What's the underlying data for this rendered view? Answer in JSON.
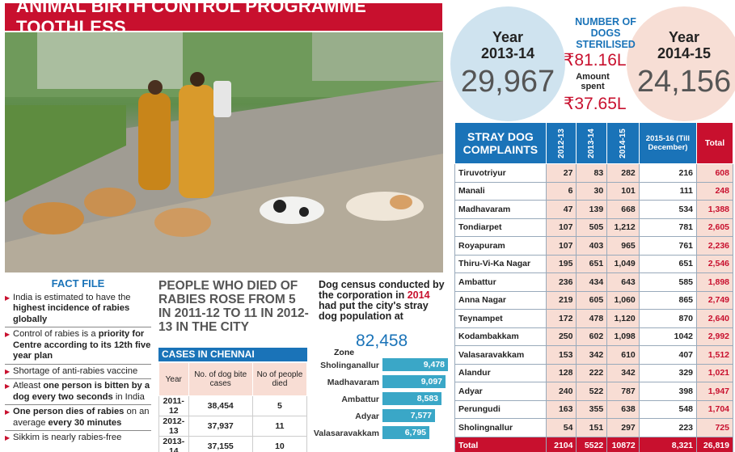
{
  "banner": {
    "title": "ANIMAL BIRTH CONTROL PROGRAMME TOOTHLESS"
  },
  "sterilised": {
    "title": "NUMBER OF DOGS STERILISED",
    "year1_label": "Year",
    "year1": "2013-14",
    "year1_count": "29,967",
    "year2_label": "Year",
    "year2": "2014-15",
    "year2_count": "24,156",
    "amount1": "₹81.16L",
    "amount_label": "Amount spent",
    "amount2": "₹37.65L"
  },
  "complaints": {
    "header": "STRAY DOG COMPLAINTS",
    "columns": [
      "2012-13",
      "2013-14",
      "2014-15",
      "2015-16 (Till December)",
      "Total"
    ],
    "rows": [
      [
        "Tiruvotriyur",
        "27",
        "83",
        "282",
        "216",
        "608"
      ],
      [
        "Manali",
        "6",
        "30",
        "101",
        "111",
        "248"
      ],
      [
        "Madhavaram",
        "47",
        "139",
        "668",
        "534",
        "1,388"
      ],
      [
        "Tondiarpet",
        "107",
        "505",
        "1,212",
        "781",
        "2,605"
      ],
      [
        "Royapuram",
        "107",
        "403",
        "965",
        "761",
        "2,236"
      ],
      [
        "Thiru-Vi-Ka Nagar",
        "195",
        "651",
        "1,049",
        "651",
        "2,546"
      ],
      [
        "Ambattur",
        "236",
        "434",
        "643",
        "585",
        "1,898"
      ],
      [
        "Anna Nagar",
        "219",
        "605",
        "1,060",
        "865",
        "2,749"
      ],
      [
        "Teynampet",
        "172",
        "478",
        "1,120",
        "870",
        "2,640"
      ],
      [
        "Kodambakkam",
        "250",
        "602",
        "1,098",
        "1042",
        "2,992"
      ],
      [
        "Valasaravakkam",
        "153",
        "342",
        "610",
        "407",
        "1,512"
      ],
      [
        "Alandur",
        "128",
        "222",
        "342",
        "329",
        "1,021"
      ],
      [
        "Adyar",
        "240",
        "522",
        "787",
        "398",
        "1,947"
      ],
      [
        "Perungudi",
        "163",
        "355",
        "638",
        "548",
        "1,704"
      ],
      [
        "Sholingnallur",
        "54",
        "151",
        "297",
        "223",
        "725"
      ]
    ],
    "total": [
      "Total",
      "2104",
      "5522",
      "10872",
      "8,321",
      "26,819"
    ]
  },
  "factfile": {
    "title": "FACT FILE",
    "facts": [
      {
        "pre": "India is estimated to have the ",
        "bold": "highest incidence of rabies globally",
        "post": ""
      },
      {
        "pre": "Control of rabies is a ",
        "bold": "priority for Centre according to its 12th five year plan",
        "post": ""
      },
      {
        "pre": "Shortage of anti-rabies vaccine",
        "bold": "",
        "post": ""
      },
      {
        "pre": "Atleast ",
        "bold": "one person is bitten by a dog every two seconds",
        "post": " in India"
      },
      {
        "pre": "",
        "bold": "One person dies of rabies",
        "post": " on an average ",
        "bold2": "every 30 minutes"
      },
      {
        "pre": "Sikkim is nearly rabies-free",
        "bold": "",
        "post": ""
      }
    ]
  },
  "rabies": {
    "headline": "PEOPLE WHO DIED OF RABIES ROSE FROM 5 IN 2011-12 TO 11 IN 2012-13 IN THE CITY",
    "cases_title": "CASES IN CHENNAI",
    "columns": [
      "Year",
      "No. of dog bite cases",
      "No of people died"
    ],
    "rows": [
      [
        "2011-12",
        "38,454",
        "5"
      ],
      [
        "2012-13",
        "37,937",
        "11"
      ],
      [
        "2013-14",
        "37,155",
        "10"
      ]
    ]
  },
  "census": {
    "headline_pre": "Dog census conducted by the corporation in ",
    "headline_year": "2014",
    "headline_post": " had put the city's stray dog population at",
    "total": "82,458",
    "zone_label": "Zone",
    "zones": [
      {
        "name": "Sholinganallur",
        "value": 9478,
        "label": "9,478"
      },
      {
        "name": "Madhavaram",
        "value": 9097,
        "label": "9,097"
      },
      {
        "name": "Ambattur",
        "value": 8583,
        "label": "8,583"
      },
      {
        "name": "Adyar",
        "value": 7577,
        "label": "7,577"
      },
      {
        "name": "Valasaravakkam",
        "value": 6795,
        "label": "6,795"
      }
    ]
  },
  "colors": {
    "accent_red": "#c8102e",
    "accent_blue": "#1a73b8",
    "bar_teal": "#3aa7c7",
    "pink": "#f8ddd4"
  }
}
